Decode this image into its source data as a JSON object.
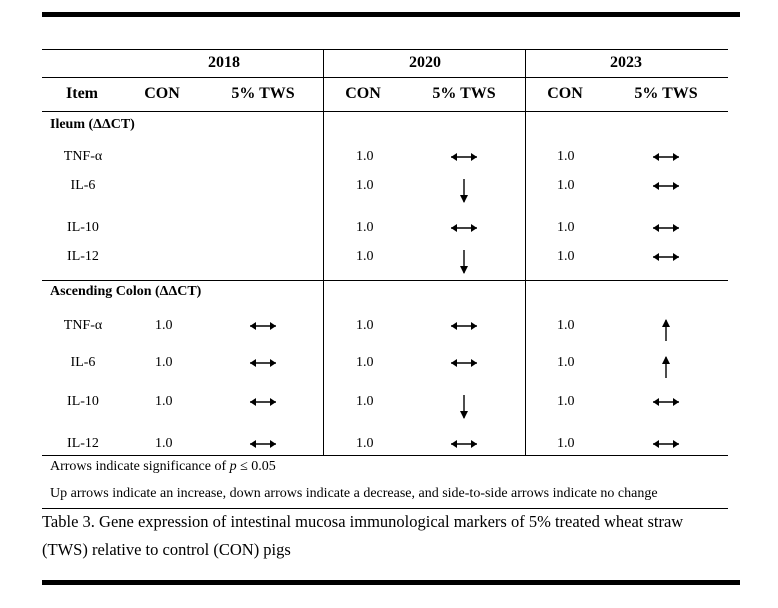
{
  "header": {
    "years": [
      "2018",
      "2020",
      "2023"
    ],
    "item_label": "Item",
    "con_label": "CON",
    "tws_label": "5% TWS"
  },
  "sections": [
    {
      "title": "Ileum (ΔΔCT)",
      "rows": [
        {
          "item": "TNF-α",
          "y2018": {
            "con": "",
            "tws": ""
          },
          "y2020": {
            "con": "1.0",
            "tws": "no-change"
          },
          "y2023": {
            "con": "1.0",
            "tws": "no-change"
          }
        },
        {
          "item": "IL-6",
          "y2018": {
            "con": "",
            "tws": ""
          },
          "y2020": {
            "con": "1.0",
            "tws": "decrease"
          },
          "y2023": {
            "con": "1.0",
            "tws": "no-change"
          }
        },
        {
          "item": "IL-10",
          "y2018": {
            "con": "",
            "tws": ""
          },
          "y2020": {
            "con": "1.0",
            "tws": "no-change"
          },
          "y2023": {
            "con": "1.0",
            "tws": "no-change"
          }
        },
        {
          "item": "IL-12",
          "y2018": {
            "con": "",
            "tws": ""
          },
          "y2020": {
            "con": "1.0",
            "tws": "decrease"
          },
          "y2023": {
            "con": "1.0",
            "tws": "no-change"
          }
        }
      ]
    },
    {
      "title": "Ascending Colon (ΔΔCT)",
      "rows": [
        {
          "item": "TNF-α",
          "y2018": {
            "con": "1.0",
            "tws": "no-change"
          },
          "y2020": {
            "con": "1.0",
            "tws": "no-change"
          },
          "y2023": {
            "con": "1.0",
            "tws": "increase"
          }
        },
        {
          "item": "IL-6",
          "y2018": {
            "con": "1.0",
            "tws": "no-change"
          },
          "y2020": {
            "con": "1.0",
            "tws": "no-change"
          },
          "y2023": {
            "con": "1.0",
            "tws": "increase"
          }
        },
        {
          "item": "IL-10",
          "y2018": {
            "con": "1.0",
            "tws": "no-change"
          },
          "y2020": {
            "con": "1.0",
            "tws": "decrease"
          },
          "y2023": {
            "con": "1.0",
            "tws": "no-change"
          }
        },
        {
          "item": "IL-12",
          "y2018": {
            "con": "1.0",
            "tws": "no-change"
          },
          "y2020": {
            "con": "1.0",
            "tws": "no-change"
          },
          "y2023": {
            "con": "1.0",
            "tws": "no-change"
          }
        }
      ]
    }
  ],
  "notes": {
    "significance_prefix": "Arrows indicate significance of ",
    "significance_var": "p",
    "significance_suffix": " ≤ 0.05",
    "arrows": "Up arrows indicate an increase, down arrows indicate a decrease, and side-to-side arrows indicate no change"
  },
  "caption": {
    "line1": "Table 3. Gene expression of intestinal mucosa immunological markers of 5% treated wheat straw",
    "line2": "(TWS) relative to control (CON) pigs"
  }
}
